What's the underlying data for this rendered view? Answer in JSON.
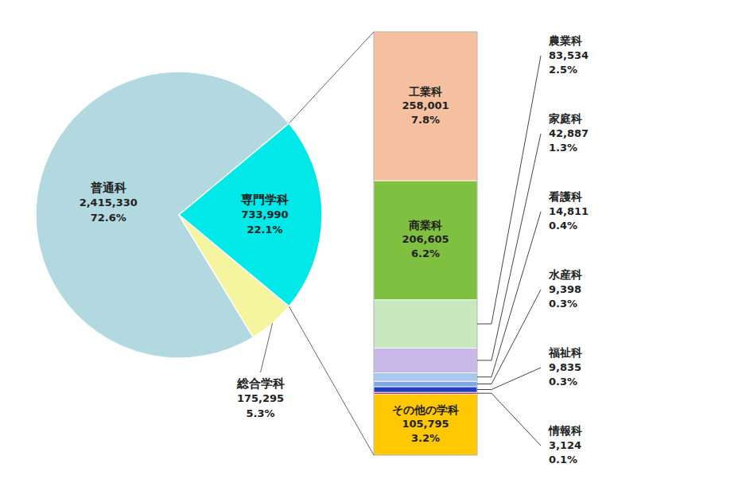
{
  "chart_data": [
    {
      "type": "pie",
      "categories": [
        "普通科",
        "専門学科",
        "総合学科"
      ],
      "values": [
        2415330,
        733990,
        175295
      ],
      "value_labels": [
        "2,415,330",
        "733,990",
        "175,295"
      ],
      "percents": [
        72.6,
        22.1,
        5.3
      ],
      "percent_labels": [
        "72.6%",
        "22.1%",
        "5.3%"
      ],
      "colors": [
        "#b2d8e0",
        "#00e8e8",
        "#f5f5a0"
      ],
      "data_labels": true
    },
    {
      "type": "bar",
      "stacked": true,
      "categories": [
        "工業科",
        "商業科",
        "農業科",
        "家庭科",
        "看護科",
        "水産科",
        "福祉科",
        "情報科",
        "その他の学科"
      ],
      "values": [
        258001,
        206605,
        83534,
        42887,
        14811,
        9398,
        9835,
        3124,
        105795
      ],
      "value_labels": [
        "258,001",
        "206,605",
        "83,534",
        "42,887",
        "14,811",
        "9,398",
        "9,835",
        "3,124",
        "105,795"
      ],
      "percents": [
        7.8,
        6.2,
        2.5,
        1.3,
        0.4,
        0.3,
        0.3,
        0.1,
        3.2
      ],
      "percent_labels": [
        "7.8%",
        "6.2%",
        "2.5%",
        "1.3%",
        "0.4%",
        "0.3%",
        "0.3%",
        "0.1%",
        "3.2%"
      ],
      "colors": [
        "#f5c0a0",
        "#80c040",
        "#c8e8c0",
        "#c8b8e8",
        "#a8c8f0",
        "#80a8e0",
        "#2040c0",
        "#d02020",
        "#ffc800"
      ],
      "ylim": [
        0,
        733990
      ],
      "tick_labels": false,
      "data_labels": true
    }
  ]
}
